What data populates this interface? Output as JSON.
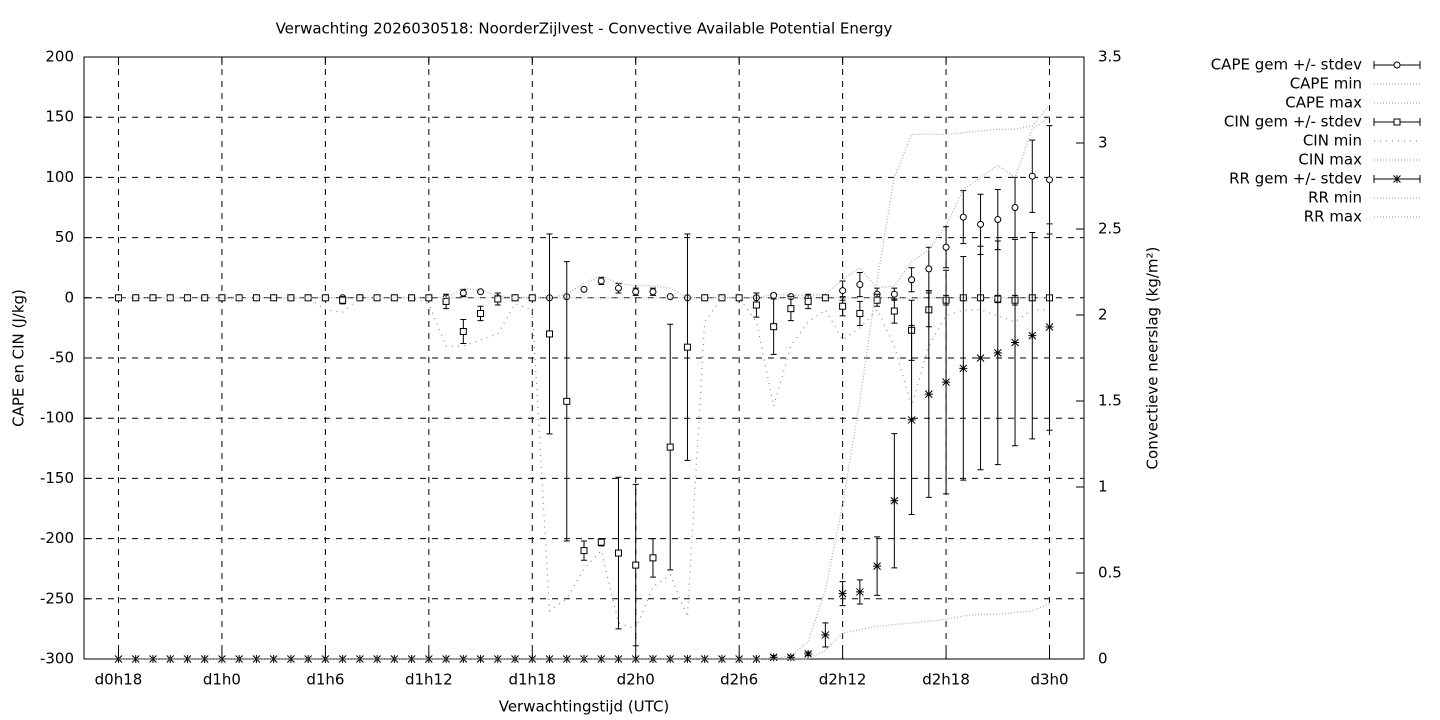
{
  "chart_data": {
    "type": "errorbar",
    "title": "Verwachting 2026030518: NoorderZijlvest - Convective Available Potential Energy",
    "x_label": "Verwachtingstijd (UTC)",
    "y_label": "CAPE en CIN (J/kg)",
    "y2_label": "Convectieve neerslag (kg/m²)",
    "grid": true,
    "legend": "right",
    "xlim": [
      16,
      74
    ],
    "xticks": [
      {
        "value": 18,
        "label": "d0h18"
      },
      {
        "value": 24,
        "label": "d1h0"
      },
      {
        "value": 30,
        "label": "d1h6"
      },
      {
        "value": 36,
        "label": "d1h12"
      },
      {
        "value": 42,
        "label": "d1h18"
      },
      {
        "value": 48,
        "label": "d2h0"
      },
      {
        "value": 54,
        "label": "d2h6"
      },
      {
        "value": 60,
        "label": "d2h12"
      },
      {
        "value": 66,
        "label": "d2h18"
      },
      {
        "value": 72,
        "label": "d3h0"
      }
    ],
    "ylim": [
      -300,
      200
    ],
    "yticks": [
      -300,
      -250,
      -200,
      -150,
      -100,
      -50,
      0,
      50,
      100,
      150,
      200
    ],
    "y2lim": [
      0,
      3.5
    ],
    "y2ticks": [
      0,
      0.5,
      1,
      1.5,
      2,
      2.5,
      3,
      3.5
    ],
    "x": [
      18,
      19,
      20,
      21,
      22,
      23,
      24,
      25,
      26,
      27,
      28,
      29,
      30,
      31,
      32,
      33,
      34,
      35,
      36,
      37,
      38,
      39,
      40,
      41,
      42,
      43,
      44,
      45,
      46,
      47,
      48,
      49,
      50,
      51,
      52,
      53,
      54,
      55,
      56,
      57,
      58,
      59,
      60,
      61,
      62,
      63,
      64,
      65,
      66,
      67,
      68,
      69,
      70,
      71,
      72
    ],
    "series": [
      {
        "name": "CAPE gem +/- stdev",
        "color": "#000000",
        "marker": "circle",
        "values": [
          0,
          0,
          0,
          0,
          0,
          0,
          0,
          0,
          0,
          0,
          0,
          0,
          0,
          0,
          0,
          0,
          0,
          0,
          0,
          0,
          4,
          5,
          0,
          0,
          0,
          0,
          1,
          7,
          14,
          8,
          5,
          5,
          1,
          0,
          0,
          0,
          0,
          0,
          2,
          1,
          0,
          0,
          6,
          11,
          3,
          3,
          15,
          24,
          42,
          67,
          61,
          65,
          75,
          101,
          98
        ],
        "errors": [
          0,
          0,
          0,
          0,
          0,
          0,
          0,
          0,
          0,
          0,
          0,
          0,
          0,
          0,
          0,
          0,
          0,
          0,
          0,
          0,
          3,
          1,
          0,
          0,
          0,
          0,
          0,
          1,
          3,
          4,
          3,
          3,
          0,
          0,
          0,
          0,
          0,
          0,
          1,
          1,
          0,
          0,
          8,
          10,
          5,
          5,
          10,
          18,
          17,
          22,
          25,
          25,
          25,
          30,
          45
        ]
      },
      {
        "name": "CAPE min",
        "color": "#aaaaaa",
        "dash": "dotted",
        "values": [
          0,
          0,
          0,
          0,
          0,
          0,
          0,
          0,
          0,
          0,
          0,
          0,
          0,
          0,
          0,
          0,
          0,
          0,
          0,
          0,
          0,
          0,
          0,
          0,
          0,
          0,
          0,
          0,
          0,
          0,
          0,
          0,
          0,
          0,
          0,
          0,
          0,
          0,
          0,
          0,
          0,
          0,
          0,
          0,
          0,
          0,
          0,
          0,
          0,
          0,
          0,
          0,
          0,
          0,
          0
        ]
      },
      {
        "name": "CAPE max",
        "color": "#aaaaaa",
        "dash": "dotted",
        "values": [
          0,
          0,
          0,
          0,
          0,
          0,
          0,
          0,
          0,
          0,
          0,
          0,
          0,
          0,
          0,
          0,
          0,
          0,
          0,
          0,
          8,
          6,
          2,
          0,
          0,
          0,
          3,
          12,
          18,
          12,
          10,
          10,
          8,
          0,
          0,
          0,
          0,
          0,
          3,
          2,
          2,
          3,
          15,
          25,
          8,
          10,
          30,
          40,
          60,
          90,
          100,
          110,
          100,
          140,
          150
        ]
      },
      {
        "name": "CIN gem +/- stdev",
        "color": "#000000",
        "marker": "square",
        "values": [
          0,
          0,
          0,
          0,
          0,
          0,
          0,
          0,
          0,
          0,
          0,
          0,
          0,
          -2,
          0,
          0,
          0,
          0,
          0,
          -3,
          -28,
          -13,
          -1,
          0,
          0,
          -30,
          -86,
          -210,
          -203,
          -212,
          -222,
          -216,
          -124,
          -41,
          0,
          0,
          0,
          -6,
          -24,
          -9,
          -3,
          0,
          -7,
          -13,
          -2,
          -11,
          -27,
          -10,
          -2,
          0,
          0,
          -1,
          -2,
          0,
          0
        ],
        "errors": [
          0,
          0,
          0,
          0,
          0,
          0,
          0,
          0,
          0,
          0,
          0,
          0,
          0,
          3,
          0,
          0,
          0,
          0,
          0,
          6,
          10,
          6,
          5,
          0,
          0,
          83,
          116,
          8,
          3,
          63,
          67,
          16,
          102,
          94,
          0,
          0,
          0,
          10,
          23,
          10,
          6,
          0,
          8,
          10,
          5,
          10,
          25,
          14,
          4,
          2,
          2,
          3,
          4,
          2,
          2
        ]
      },
      {
        "name": "CIN min",
        "color": "#888888",
        "dash": "sparse",
        "values": [
          0,
          0,
          0,
          0,
          0,
          0,
          0,
          0,
          0,
          0,
          0,
          0,
          -10,
          -12,
          0,
          0,
          0,
          0,
          -5,
          -40,
          -40,
          -35,
          -30,
          -5,
          -10,
          -260,
          -250,
          -225,
          -210,
          -270,
          -275,
          -240,
          -230,
          -265,
          -20,
          0,
          0,
          -20,
          -90,
          -40,
          -20,
          -10,
          -35,
          -25,
          -10,
          -40,
          -90,
          -40,
          -15,
          -10,
          -10,
          -15,
          -20,
          -10,
          -10
        ]
      },
      {
        "name": "CIN max",
        "color": "#aaaaaa",
        "dash": "dotted",
        "values": [
          0,
          0,
          0,
          0,
          0,
          0,
          0,
          0,
          0,
          0,
          0,
          0,
          0,
          0,
          0,
          0,
          0,
          0,
          0,
          0,
          0,
          0,
          0,
          0,
          0,
          0,
          0,
          0,
          0,
          0,
          0,
          0,
          0,
          0,
          0,
          0,
          0,
          0,
          0,
          0,
          0,
          0,
          0,
          0,
          0,
          0,
          0,
          0,
          0,
          0,
          0,
          0,
          0,
          0,
          0
        ]
      },
      {
        "name": "RR gem +/- stdev",
        "color": "#000000",
        "marker": "star",
        "axis": "y2",
        "values": [
          0,
          0,
          0,
          0,
          0,
          0,
          0,
          0,
          0,
          0,
          0,
          0,
          0,
          0,
          0,
          0,
          0,
          0,
          0,
          0,
          0,
          0,
          0,
          0,
          0,
          0,
          0,
          0,
          0,
          0,
          0,
          0,
          0,
          0,
          0,
          0,
          0,
          0,
          0.01,
          0.01,
          0.03,
          0.14,
          0.38,
          0.39,
          0.54,
          0.92,
          1.39,
          1.54,
          1.61,
          1.69,
          1.75,
          1.78,
          1.84,
          1.88,
          1.93
        ],
        "errors": [
          0,
          0,
          0,
          0,
          0,
          0,
          0,
          0,
          0,
          0,
          0,
          0,
          0,
          0,
          0,
          0,
          0,
          0,
          0,
          0,
          0,
          0,
          0,
          0,
          0,
          0,
          0,
          0,
          0,
          0,
          0,
          0,
          0,
          0,
          0,
          0,
          0,
          0,
          0.01,
          0.01,
          0.01,
          0.07,
          0.07,
          0.07,
          0.17,
          0.39,
          0.55,
          0.6,
          0.65,
          0.65,
          0.65,
          0.65,
          0.6,
          0.6,
          0.6
        ]
      },
      {
        "name": "RR min",
        "color": "#aaaaaa",
        "dash": "dotted",
        "axis": "y2",
        "values": [
          0,
          0,
          0,
          0,
          0,
          0,
          0,
          0,
          0,
          0,
          0,
          0,
          0,
          0,
          0,
          0,
          0,
          0,
          0,
          0,
          0,
          0,
          0,
          0,
          0,
          0,
          0,
          0,
          0,
          0,
          0,
          0,
          0,
          0,
          0,
          0,
          0,
          0,
          0,
          0,
          0,
          0.05,
          0.15,
          0.17,
          0.19,
          0.2,
          0.21,
          0.22,
          0.23,
          0.25,
          0.26,
          0.26,
          0.27,
          0.28,
          0.32
        ]
      },
      {
        "name": "RR max",
        "color": "#aaaaaa",
        "dash": "dotted",
        "axis": "y2",
        "values": [
          0,
          0,
          0,
          0,
          0,
          0,
          0,
          0,
          0,
          0,
          0,
          0,
          0,
          0,
          0,
          0,
          0,
          0,
          0,
          0,
          0,
          0,
          0,
          0,
          0,
          0,
          0,
          0,
          0,
          0,
          0,
          0,
          0,
          0,
          0,
          0,
          0,
          0,
          0,
          0.02,
          0.1,
          0.4,
          0.9,
          1.5,
          2.2,
          2.8,
          3.05,
          3.05,
          3.05,
          3.06,
          3.07,
          3.08,
          3.08,
          3.1,
          3.22
        ]
      }
    ]
  }
}
